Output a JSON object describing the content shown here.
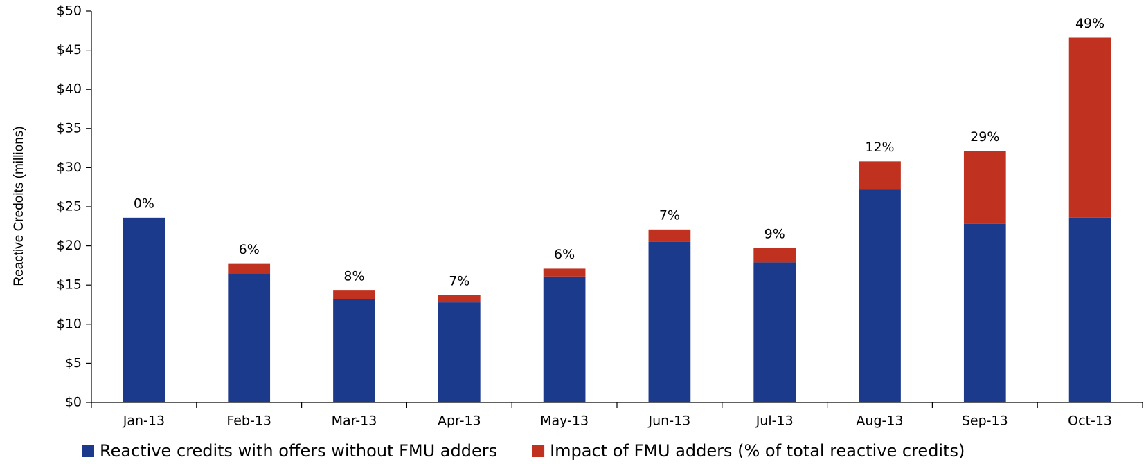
{
  "chart_data": {
    "type": "stacked-bar",
    "y_label": "Reactive Credoits (millions)",
    "categories": [
      "Jan-13",
      "Feb-13",
      "Mar-13",
      "Apr-13",
      "May-13",
      "Jun-13",
      "Jul-13",
      "Aug-13",
      "Sep-13",
      "Oct-13"
    ],
    "series": [
      {
        "name": "Reactive credits with offers without FMU adders",
        "color": "#1b3a8c",
        "values": [
          23.6,
          16.5,
          13.2,
          12.8,
          16.1,
          20.5,
          17.9,
          27.2,
          22.8,
          23.6
        ]
      },
      {
        "name": "Impact of FMU adders (% of total reactive credits)",
        "color": "#c0311f",
        "values": [
          0,
          1.2,
          1.1,
          0.9,
          1.0,
          1.6,
          1.8,
          3.6,
          9.3,
          23.0
        ]
      }
    ],
    "annotations": [
      "0%",
      "6%",
      "8%",
      "7%",
      "6%",
      "7%",
      "9%",
      "12%",
      "29%",
      "49%"
    ],
    "ylim": [
      0,
      50
    ],
    "yticks": [
      {
        "value": 0,
        "label": "$0"
      },
      {
        "value": 5,
        "label": "$5"
      },
      {
        "value": 10,
        "label": "$10"
      },
      {
        "value": 15,
        "label": "$15"
      },
      {
        "value": 20,
        "label": "$20"
      },
      {
        "value": 25,
        "label": "$25"
      },
      {
        "value": 30,
        "label": "$30"
      },
      {
        "value": 35,
        "label": "$35"
      },
      {
        "value": 40,
        "label": "$40"
      },
      {
        "value": 45,
        "label": "$45"
      },
      {
        "value": 50,
        "label": "$50"
      }
    ],
    "grid": false
  }
}
